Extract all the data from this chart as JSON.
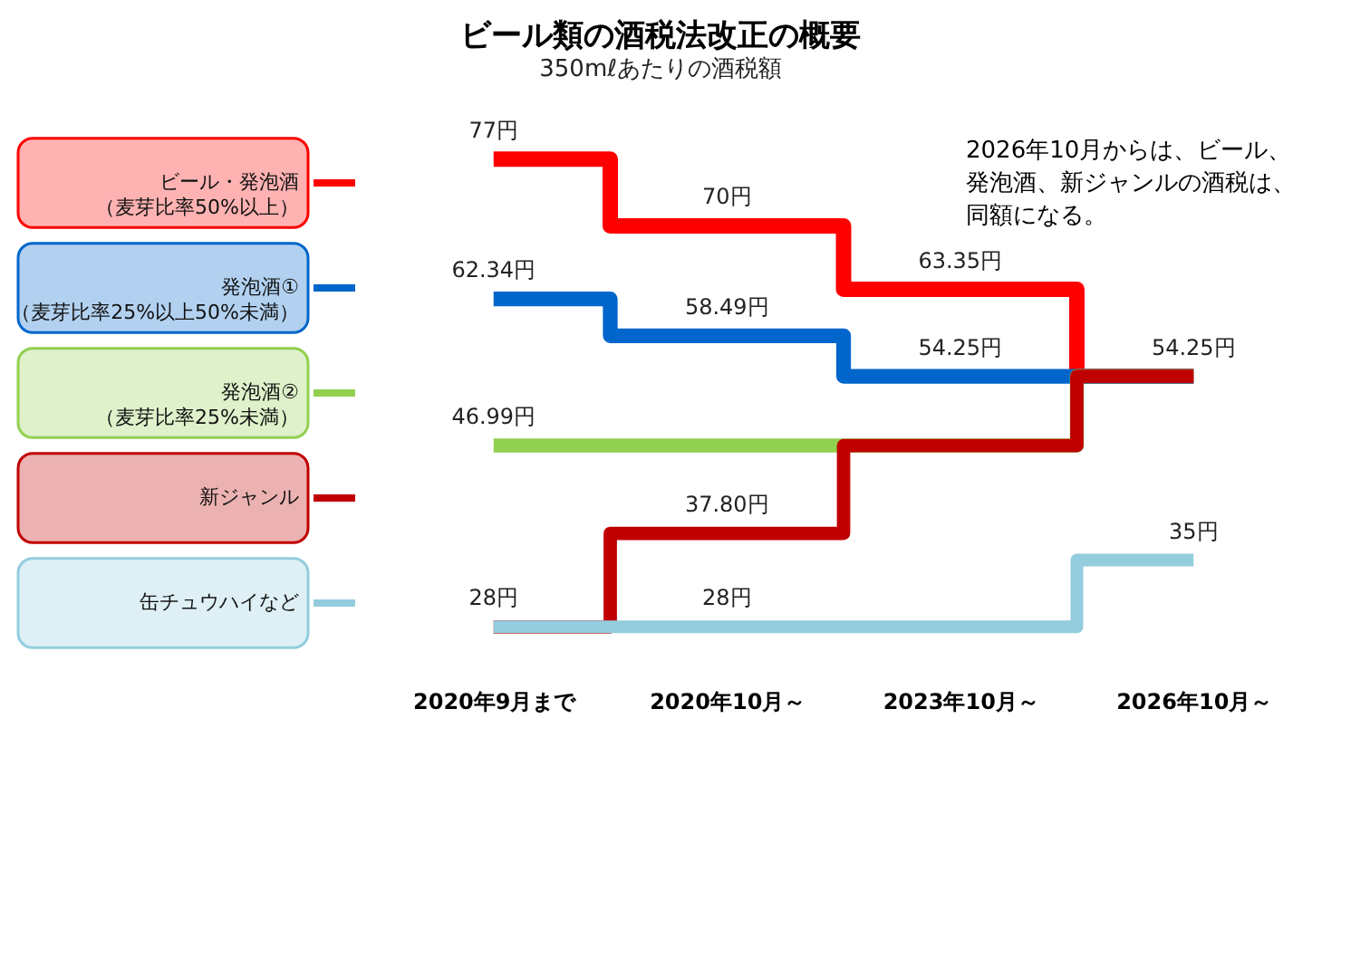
{
  "chart_data": {
    "type": "step",
    "title": "ビール類の酒税法改正の概要",
    "subtitle": "350mℓあたりの酒税額",
    "categories": [
      "2020年9月まで",
      "2020年10月～",
      "2023年10月～",
      "2026年10月～"
    ],
    "series": [
      {
        "name": "ビール・発泡酒（麦芽比率50%以上）",
        "color": "#ff0000",
        "values": [
          77,
          70,
          63.35,
          54.25
        ],
        "value_labels": [
          "77円",
          "70円",
          "63.35円",
          "54.25円"
        ]
      },
      {
        "name": "発泡酒①（麦芽比率25%以上50%未満）",
        "color": "#0066cc",
        "values": [
          62.34,
          58.49,
          54.25,
          54.25
        ],
        "value_labels": [
          "62.34円",
          "58.49円",
          "54.25円",
          null
        ]
      },
      {
        "name": "発泡酒②（麦芽比率25%未満）",
        "color": "#92d050",
        "values": [
          46.99,
          46.99,
          46.99,
          54.25
        ],
        "value_labels": [
          "46.99円",
          null,
          null,
          null
        ]
      },
      {
        "name": "新ジャンル",
        "color": "#c00000",
        "values": [
          28,
          37.8,
          46.99,
          54.25
        ],
        "value_labels": [
          "28円",
          "37.80円",
          null,
          null
        ]
      },
      {
        "name": "缶チュウハイなど",
        "color": "#93cddd",
        "values": [
          28,
          28,
          28,
          35
        ],
        "value_labels": [
          null,
          "28円",
          null,
          "35円"
        ]
      }
    ],
    "annotations": [
      "2026年10月からは、ビール、発泡酒、新ジャンルの酒税は、同額になる。"
    ],
    "legend": "left",
    "grid": false
  }
}
